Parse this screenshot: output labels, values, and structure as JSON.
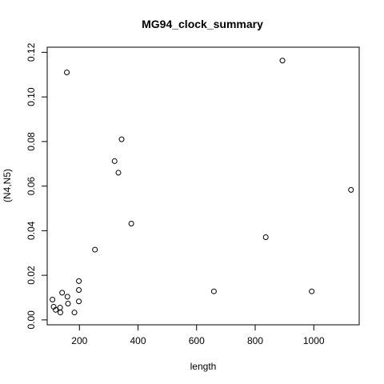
{
  "chart_data": {
    "type": "scatter",
    "title": "MG94_clock_summary",
    "xlabel": "length",
    "ylabel": "(N4,N5)",
    "xlim": [
      90,
      1155
    ],
    "ylim": [
      -0.0022,
      0.1223
    ],
    "grid": false,
    "legend": "none",
    "x_ticks": [
      200,
      400,
      600,
      800,
      1000
    ],
    "x_tick_labels": [
      "200",
      "400",
      "600",
      "800",
      "1000"
    ],
    "y_ticks": [
      0.0,
      0.02,
      0.04,
      0.06,
      0.08,
      0.1,
      0.12
    ],
    "y_tick_labels": [
      "0.00",
      "0.02",
      "0.04",
      "0.06",
      "0.08",
      "0.10",
      "0.12"
    ],
    "points": [
      {
        "x": 157,
        "y": 0.111
      },
      {
        "x": 893,
        "y": 0.1163
      },
      {
        "x": 344,
        "y": 0.081
      },
      {
        "x": 320,
        "y": 0.0712
      },
      {
        "x": 333,
        "y": 0.066
      },
      {
        "x": 1127,
        "y": 0.0583
      },
      {
        "x": 377,
        "y": 0.0432
      },
      {
        "x": 836,
        "y": 0.0371
      },
      {
        "x": 253,
        "y": 0.0315
      },
      {
        "x": 659,
        "y": 0.0128
      },
      {
        "x": 993,
        "y": 0.0128
      },
      {
        "x": 198,
        "y": 0.0174
      },
      {
        "x": 198,
        "y": 0.0134
      },
      {
        "x": 141,
        "y": 0.0122
      },
      {
        "x": 159,
        "y": 0.0104
      },
      {
        "x": 108,
        "y": 0.0091
      },
      {
        "x": 198,
        "y": 0.0083
      },
      {
        "x": 161,
        "y": 0.0073
      },
      {
        "x": 112,
        "y": 0.0059
      },
      {
        "x": 134,
        "y": 0.0055
      },
      {
        "x": 119,
        "y": 0.0045
      },
      {
        "x": 135,
        "y": 0.0033
      },
      {
        "x": 183,
        "y": 0.0033
      }
    ]
  }
}
